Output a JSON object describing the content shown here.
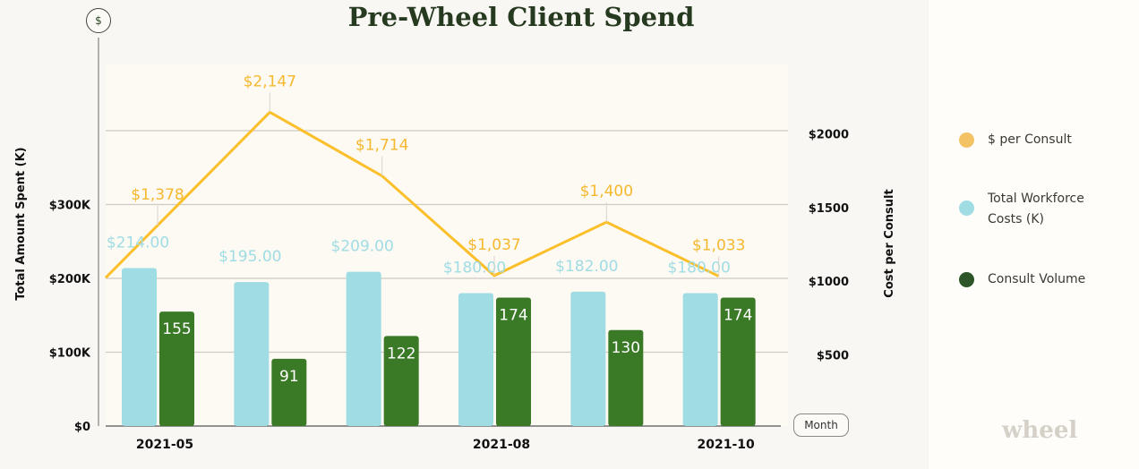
{
  "title": "Pre-Wheel Client Spend",
  "month_button": "Month",
  "currency_button": "$",
  "logo_text": "wheel",
  "legend": [
    {
      "label": "$ per Consult",
      "color": "#f2c265"
    },
    {
      "label": "Total Workforce Costs (K)",
      "color": "#a0dce4"
    },
    {
      "label": "Consult Volume",
      "color": "#2d5527"
    }
  ],
  "chart_data": {
    "type": "bar+line",
    "x_tick_labels": [
      {
        "index": 0,
        "label": "2021-05"
      },
      {
        "index": 3,
        "label": "2021-08"
      },
      {
        "index": 5,
        "label": "2021-10"
      }
    ],
    "left_axis": {
      "label": "Total Amount Spent (K)",
      "ticks": [
        "$0",
        "$100K",
        "$200K",
        "$300K"
      ],
      "tick_values": [
        0,
        100,
        200,
        300
      ],
      "range": [
        0,
        490
      ]
    },
    "right_axis": {
      "label": "Cost per Consult",
      "ticks": [
        "$500",
        "$1000",
        "$1500",
        "$2000"
      ],
      "tick_values": [
        500,
        1000,
        1500,
        2000
      ],
      "range": [
        0,
        2450
      ]
    },
    "grid": true,
    "legend_position": "right",
    "series": [
      {
        "name": "Total Workforce Costs (K)",
        "kind": "bar",
        "axis": "left",
        "color": "#a0dce4",
        "values": [
          214,
          195,
          209,
          180,
          182,
          180
        ],
        "labels": [
          "$214.00",
          "$195.00",
          "$209.00",
          "$180.00",
          "$182.00",
          "$180.00"
        ]
      },
      {
        "name": "Consult Volume",
        "kind": "bar",
        "axis": "left",
        "color": "#3a7a27",
        "values": [
          155,
          91,
          122,
          174,
          130,
          174
        ],
        "labels": [
          "155",
          "91",
          "122",
          "174",
          "130",
          "174"
        ]
      },
      {
        "name": "$ per Consult",
        "kind": "line",
        "axis": "right",
        "color": "#fbbf2a",
        "values": [
          1378,
          2147,
          1714,
          1037,
          1400,
          1033
        ],
        "labels": [
          "$1,378",
          "$2,147",
          "$1,714",
          "$1,037",
          "$1,400",
          "$1,033"
        ]
      }
    ]
  }
}
